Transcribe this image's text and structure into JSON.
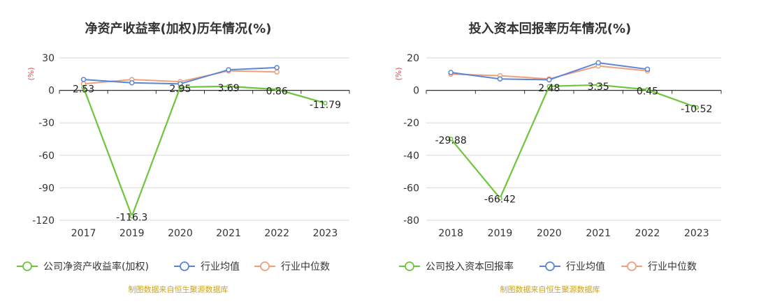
{
  "charts": [
    {
      "title": "净资产收益率(加权)历年情况(%)",
      "unit_label": "(%)",
      "source": "制图数据来自恒生聚源数据库",
      "legend": [
        "公司净资产收益率(加权)",
        "行业均值",
        "行业中位数"
      ]
    },
    {
      "title": "投入资本回报率历年情况(%)",
      "unit_label": "(%)",
      "source": "制图数据来自恒生聚源数据库",
      "legend": [
        "公司投入资本回报率",
        "行业均值",
        "行业中位数"
      ]
    }
  ],
  "colors": {
    "company": "#6cc63a",
    "avg": "#5b86d6",
    "median": "#f0a07c",
    "axis": "#333333",
    "grid": "#d8d8d8",
    "title": "#333333",
    "source": "#c9a227",
    "unit": "#e05050"
  },
  "chart_data": [
    {
      "type": "line",
      "title": "净资产收益率(加权)历年情况(%)",
      "categories": [
        "2017",
        "2019",
        "2020",
        "2021",
        "2022",
        "2023"
      ],
      "ylim": [
        -120,
        30
      ],
      "yticks": [
        30,
        0,
        -30,
        -60,
        -90,
        -120
      ],
      "grid": true,
      "legend_position": "bottom",
      "series": [
        {
          "name": "公司净资产收益率(加权)",
          "values": [
            2.53,
            -116.3,
            2.95,
            3.69,
            0.86,
            -11.79
          ],
          "labels": [
            "2.53",
            "-116.3",
            "2.95",
            "3.69",
            "0.86",
            "-11.79"
          ]
        },
        {
          "name": "行业均值",
          "values": [
            10,
            7,
            6,
            19,
            21,
            null
          ]
        },
        {
          "name": "行业中位数",
          "values": [
            6,
            10,
            8,
            18,
            17,
            null
          ]
        }
      ]
    },
    {
      "type": "line",
      "title": "投入资本回报率历年情况(%)",
      "categories": [
        "2018",
        "2019",
        "2020",
        "2021",
        "2022",
        "2023"
      ],
      "ylim": [
        -80,
        20
      ],
      "yticks": [
        20,
        0,
        -20,
        -40,
        -60,
        -80
      ],
      "grid": true,
      "legend_position": "bottom",
      "series": [
        {
          "name": "公司投入资本回报率",
          "values": [
            -29.88,
            -66.42,
            2.48,
            3.35,
            0.45,
            -10.52
          ],
          "labels": [
            "-29.88",
            "-66.42",
            "2.48",
            "3.35",
            "0.45",
            "-10.52"
          ]
        },
        {
          "name": "行业均值",
          "values": [
            11,
            7,
            6.5,
            17,
            13,
            null
          ]
        },
        {
          "name": "行业中位数",
          "values": [
            10,
            9,
            7,
            15,
            12,
            null
          ]
        }
      ]
    }
  ]
}
